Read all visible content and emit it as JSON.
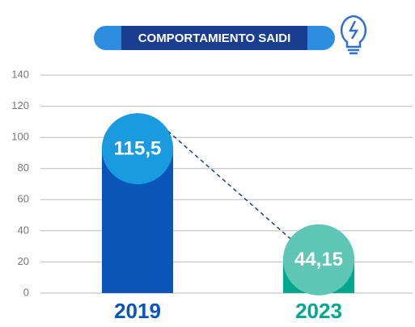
{
  "chart_data": {
    "type": "bar",
    "title": "COMPORTAMIENTO SAIDI",
    "categories": [
      "2019",
      "2023"
    ],
    "values": [
      115.5,
      44.15
    ],
    "value_labels": [
      "115,5",
      "44,15"
    ],
    "colors": [
      "#0a56b8",
      "#00a88f"
    ],
    "label_circle_colors": [
      "#1a9be0",
      "#5fc6b6"
    ],
    "ylim": [
      0,
      140
    ],
    "yticks": [
      0,
      20,
      40,
      60,
      80,
      100,
      120,
      140
    ],
    "grid": true
  }
}
